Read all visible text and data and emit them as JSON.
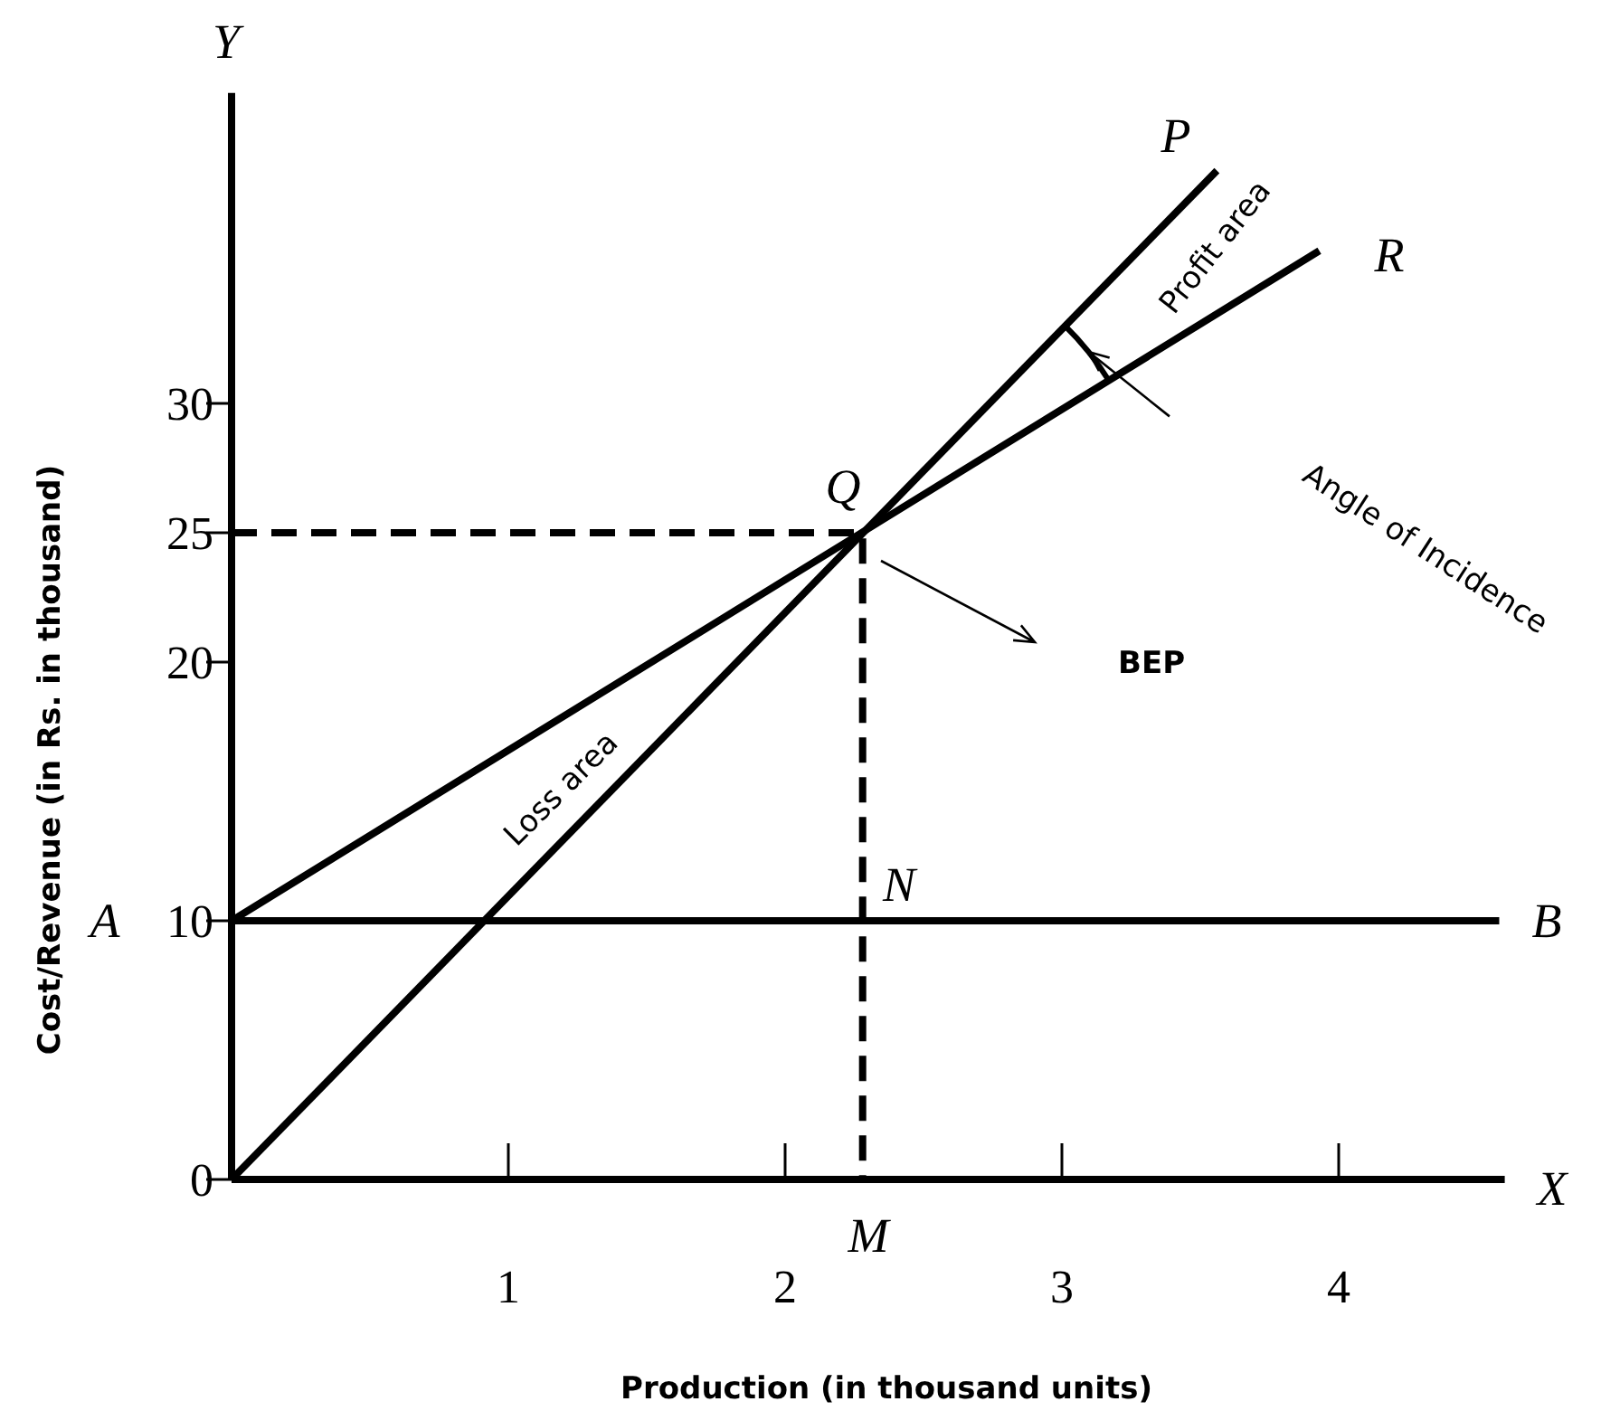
{
  "chart_data": {
    "type": "line",
    "xlabel": "Production (in thousand units)",
    "ylabel": "Cost/Revenue (in Rs. in thousand)",
    "xlim": [
      0,
      4.6
    ],
    "ylim": [
      0,
      42
    ],
    "xticks": [
      1,
      2,
      3,
      4
    ],
    "yticks": [
      0,
      10,
      20,
      25,
      30
    ],
    "series": [
      {
        "x": [
          0,
          3.56
        ],
        "values": [
          0,
          39
        ],
        "color": "#000000"
      },
      {
        "x": [
          0,
          3.93
        ],
        "values": [
          10,
          35.9
        ],
        "color": "#000000"
      },
      {
        "x": [
          0,
          4.58
        ],
        "values": [
          10,
          10
        ],
        "color": "#000000"
      },
      {
        "x": [
          0,
          2.28,
          2.28
        ],
        "values": [
          25,
          25,
          0
        ],
        "color": "#000000",
        "line_style": "dashed"
      }
    ],
    "annotations": [
      "Y",
      "X",
      "A",
      "B",
      "P",
      "R",
      "Q",
      "N",
      "M",
      "Profit area",
      "Loss area",
      "Angle of Incidence",
      "BEP"
    ],
    "grid": false,
    "marker": "none",
    "line_style": "solid"
  }
}
